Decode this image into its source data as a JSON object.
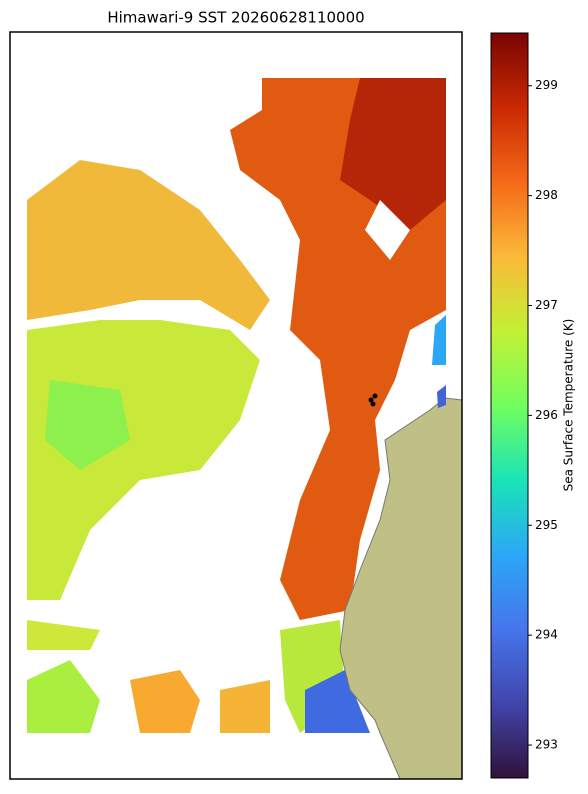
{
  "title": "Himawari-9 SST 20260628110000",
  "colorbar": {
    "label": "Sea Surface Temperature (K)",
    "lim": [
      292.7,
      299.48
    ],
    "ticks": [
      293,
      294,
      295,
      296,
      297,
      298,
      299
    ]
  }
}
